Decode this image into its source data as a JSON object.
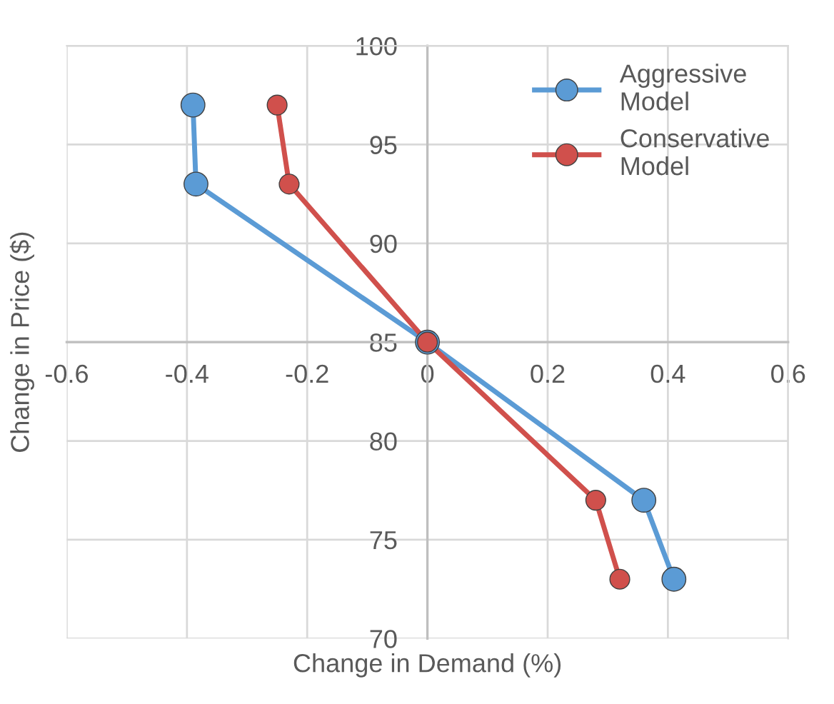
{
  "chart_data": {
    "type": "line",
    "xlabel": "Change in Demand (%)",
    "ylabel": "Change in Price ($)",
    "series": [
      {
        "name": "Aggressive Model",
        "color": "#5b9bd5",
        "x": [
          -0.39,
          -0.385,
          0,
          0.36,
          0.41
        ],
        "values": [
          97,
          93,
          85,
          77,
          73
        ]
      },
      {
        "name": "Conservative Model",
        "color": "#d0504c",
        "x": [
          -0.25,
          -0.23,
          0,
          0.28,
          0.32
        ],
        "values": [
          97,
          93,
          85,
          77,
          73
        ]
      }
    ],
    "xlim": [
      -0.6,
      0.6
    ],
    "xticks": [
      -0.6,
      -0.4,
      -0.2,
      0,
      0.2,
      0.4,
      0.6
    ],
    "ylim": [
      70,
      100
    ],
    "yticks": [
      70,
      75,
      80,
      85,
      90,
      95,
      100
    ],
    "grid": true,
    "legend": "top right",
    "marker": "circle",
    "line_style": "solid"
  }
}
